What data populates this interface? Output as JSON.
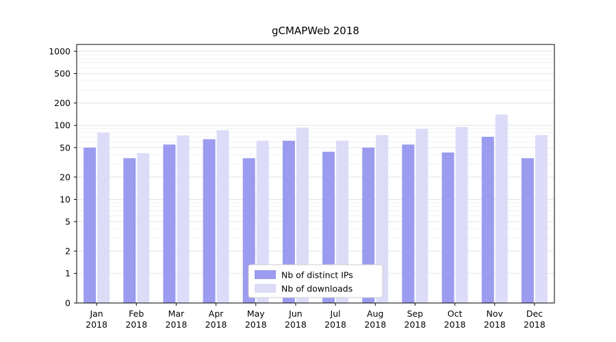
{
  "chart_data": {
    "type": "bar",
    "title": "gCMAPWeb 2018",
    "categories": [
      "Jan",
      "Feb",
      "Mar",
      "Apr",
      "May",
      "Jun",
      "Jul",
      "Aug",
      "Sep",
      "Oct",
      "Nov",
      "Dec"
    ],
    "x_year": "2018",
    "series": [
      {
        "name": "Nb of distinct IPs",
        "color": "#9b9bef",
        "values": [
          50,
          36,
          55,
          65,
          36,
          62,
          44,
          50,
          55,
          43,
          70,
          36
        ]
      },
      {
        "name": "Nb of downloads",
        "color": "#dcdcf9",
        "values": [
          80,
          42,
          73,
          86,
          62,
          93,
          62,
          74,
          90,
          95,
          140,
          74
        ]
      }
    ],
    "yticks": [
      0,
      1,
      2,
      5,
      10,
      20,
      50,
      100,
      200,
      500,
      1000
    ],
    "yscale": "symlog",
    "ylim": [
      0,
      1000
    ],
    "grid": true,
    "legend_position": "lower center"
  },
  "colors": {
    "bar_distinct_ips": "#9b9bef",
    "bar_downloads": "#dcdcf9",
    "major_gridline": "#e2e2e2",
    "minor_gridline": "#f1f1f1",
    "axis": "#000000",
    "legend_border": "#cccccc",
    "legend_background": "#ffffff"
  }
}
